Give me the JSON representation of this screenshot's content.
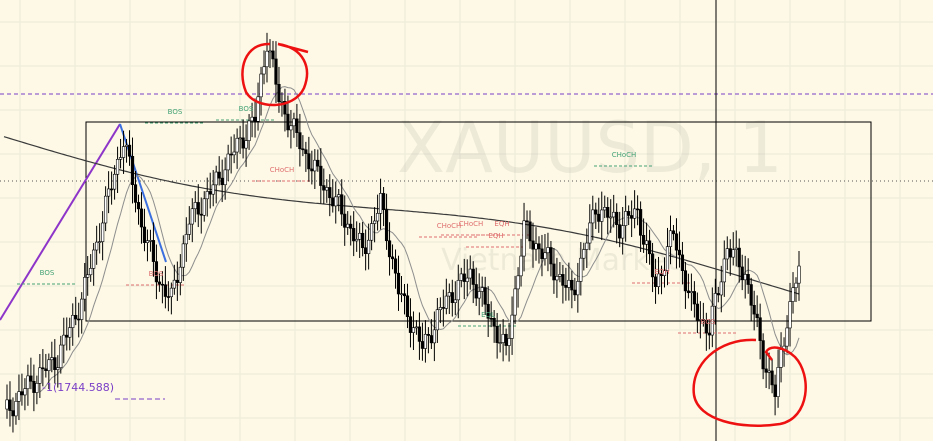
{
  "chart_data": {
    "type": "candlestick",
    "symbol_watermark": "XAUUSD, 1",
    "watermark_sub": "Vietnam Market",
    "price_label": "-1(1744.588)",
    "colors": {
      "background": "#fdf9e6",
      "grid": "#ecead8",
      "candle_up": "#ffffff",
      "candle_down": "#000000",
      "candle_stroke": "#000000",
      "ma_long": "#3a3a3a",
      "ma_short": "#8e8e8e",
      "bos_green": "#46a376",
      "choch_red": "#e07070",
      "dash_purple": "#7b3fc7",
      "trend_purple": "#8e35c9",
      "trend_blue": "#3b6fe0",
      "annotation_red": "#ee1111"
    },
    "labels": [
      {
        "id": "bos-1",
        "text": "BOS",
        "kind": "bos",
        "y": 1755.9
      },
      {
        "id": "bos-2",
        "text": "BOS",
        "kind": "bos",
        "y": 1755.5
      },
      {
        "id": "bos-3",
        "text": "BOS",
        "kind": "bos",
        "y": 1747.6
      },
      {
        "id": "choch-1",
        "text": "CHoCH",
        "kind": "choch",
        "y": 1753.3
      },
      {
        "id": "choch-2",
        "text": "CHoCH",
        "kind": "choch",
        "y": 1749.9
      },
      {
        "id": "choch-3",
        "text": "CHoCH",
        "kind": "choch",
        "y": 1748.2
      },
      {
        "id": "choch-4",
        "text": "CHoCH",
        "kind": "bos",
        "y": 1747.6
      },
      {
        "id": "eqh-1",
        "text": "EQH",
        "kind": "choch",
        "y": 1753.8
      },
      {
        "id": "eqh-2",
        "text": "EQH",
        "kind": "choch",
        "y": 1750.0
      },
      {
        "id": "eqh-3",
        "text": "EQH",
        "kind": "choch",
        "y": 1750.0
      },
      {
        "id": "eql-1",
        "text": "EQL",
        "kind": "bos",
        "y": 1748.5
      },
      {
        "id": "bos-4",
        "text": "BOS",
        "kind": "choch",
        "y": 1746.8
      },
      {
        "id": "bos-5",
        "text": "BOS",
        "kind": "choch",
        "y": 1746.6
      }
    ]
  }
}
